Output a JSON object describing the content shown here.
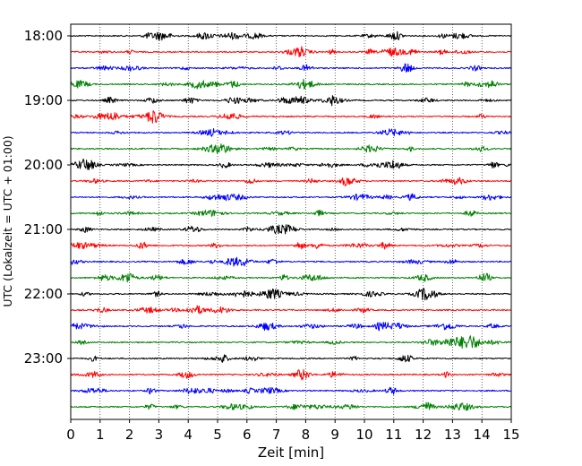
{
  "chart_data": {
    "type": "line",
    "title": "",
    "xlabel": "Zeit  [min]",
    "ylabel": "UTC (Lokalzeit = UTC + 01:00)",
    "xlim": [
      0,
      15
    ],
    "x_ticks": [
      "0",
      "1",
      "2",
      "3",
      "4",
      "5",
      "6",
      "7",
      "8",
      "9",
      "10",
      "11",
      "12",
      "13",
      "14",
      "15"
    ],
    "y_ticks": [
      "18:00",
      "19:00",
      "20:00",
      "21:00",
      "22:00",
      "23:00"
    ],
    "grid": "vertical dotted lines at each minute",
    "legend": "none",
    "trace_interval_min": 15,
    "trace_colors": [
      "#000000",
      "#ff0000",
      "#0000ff",
      "#008000"
    ],
    "series": [
      {
        "start": "18:00"
      },
      {
        "start": "18:15"
      },
      {
        "start": "18:30"
      },
      {
        "start": "18:45"
      },
      {
        "start": "19:00"
      },
      {
        "start": "19:15"
      },
      {
        "start": "19:30"
      },
      {
        "start": "19:45"
      },
      {
        "start": "20:00"
      },
      {
        "start": "20:15"
      },
      {
        "start": "20:30"
      },
      {
        "start": "20:45"
      },
      {
        "start": "21:00"
      },
      {
        "start": "21:15"
      },
      {
        "start": "21:30"
      },
      {
        "start": "21:45"
      },
      {
        "start": "22:00"
      },
      {
        "start": "22:15"
      },
      {
        "start": "22:30"
      },
      {
        "start": "22:45"
      },
      {
        "start": "23:00"
      },
      {
        "start": "23:15"
      },
      {
        "start": "23:30"
      },
      {
        "start": "23:45"
      }
    ]
  }
}
